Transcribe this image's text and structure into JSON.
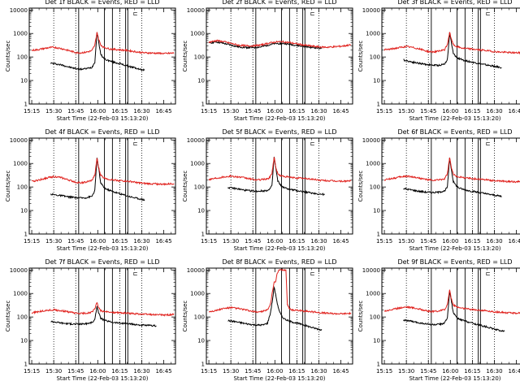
{
  "colors": {
    "events": "#000000",
    "lld": "#e0201c",
    "frame": "#000000",
    "background": "#ffffff"
  },
  "axes": {
    "ylabel": "Counts/sec",
    "xlabel": "Start Time (22-Feb-03 15:13:20)",
    "xtick_labels": [
      "15:15",
      "15:30",
      "15:45",
      "16:00",
      "16:15",
      "16:30",
      "16:45"
    ],
    "xtick_minutes": [
      15,
      30,
      45,
      60,
      75,
      90,
      105
    ],
    "ytick_labels": [
      "1",
      "10",
      "100",
      "1000",
      "10000"
    ],
    "ytick_values": [
      1,
      10,
      100,
      1000,
      10000
    ],
    "xlim_minutes": [
      13.3,
      113
    ],
    "ylim": [
      1,
      12000
    ],
    "yscale": "log",
    "dotted_vlines_minutes": [
      30,
      45,
      75,
      90
    ],
    "solid_vlines_minutes": [
      47,
      64.5,
      70,
      79,
      80.5
    ],
    "marker_glyph": "⊏"
  },
  "chart_data": [
    {
      "type": "line",
      "title": "Det 1f BLACK = Events, RED = LLD",
      "series": [
        {
          "color": "#000000",
          "x": [
            28,
            32,
            36,
            40,
            44,
            48,
            52,
            56,
            58,
            59.5,
            60.5,
            62,
            64,
            66,
            70,
            75,
            80,
            85,
            90,
            92
          ],
          "y": [
            55,
            50,
            45,
            38,
            33,
            30,
            32,
            36,
            60,
            1150,
            500,
            130,
            90,
            75,
            62,
            52,
            42,
            35,
            28,
            28
          ]
        },
        {
          "color": "#e0201c",
          "x": [
            15,
            20,
            25,
            30,
            35,
            40,
            45,
            48,
            52,
            56,
            58,
            59.5,
            60.5,
            62,
            64,
            68,
            72,
            76,
            80,
            84,
            88,
            92,
            96,
            100,
            106,
            112
          ],
          "y": [
            190,
            210,
            240,
            260,
            230,
            190,
            155,
            150,
            160,
            185,
            320,
            1150,
            600,
            330,
            260,
            220,
            210,
            200,
            190,
            175,
            160,
            150,
            148,
            145,
            140,
            148
          ]
        }
      ]
    },
    {
      "type": "line",
      "title": "Det 2f BLACK = Events, RED = LLD",
      "series": [
        {
          "color": "#000000",
          "x": [
            15,
            20,
            25,
            30,
            35,
            40,
            45,
            50,
            55,
            60,
            65,
            70,
            75,
            80,
            85,
            90,
            92
          ],
          "y": [
            390,
            440,
            380,
            320,
            270,
            255,
            250,
            265,
            320,
            370,
            380,
            345,
            310,
            280,
            255,
            240,
            235
          ]
        },
        {
          "color": "#e0201c",
          "x": [
            15,
            20,
            25,
            30,
            35,
            40,
            45,
            50,
            55,
            60,
            65,
            70,
            75,
            80,
            85,
            90,
            95,
            100,
            106,
            112
          ],
          "y": [
            420,
            500,
            450,
            380,
            320,
            300,
            300,
            320,
            380,
            430,
            450,
            410,
            360,
            320,
            290,
            270,
            260,
            270,
            290,
            330
          ]
        }
      ]
    },
    {
      "type": "line",
      "title": "Det 3f BLACK = Events, RED = LLD",
      "series": [
        {
          "color": "#000000",
          "x": [
            28,
            32,
            36,
            40,
            44,
            48,
            52,
            56,
            58,
            59.5,
            60.5,
            62,
            64,
            66,
            70,
            75,
            80,
            85,
            90,
            95
          ],
          "y": [
            75,
            65,
            58,
            52,
            48,
            45,
            44,
            50,
            80,
            1050,
            480,
            140,
            100,
            85,
            70,
            60,
            52,
            45,
            40,
            35
          ]
        },
        {
          "color": "#e0201c",
          "x": [
            15,
            20,
            25,
            30,
            35,
            40,
            45,
            48,
            52,
            56,
            58,
            59.5,
            60.5,
            62,
            64,
            68,
            72,
            76,
            80,
            84,
            88,
            92,
            96,
            100,
            106,
            112
          ],
          "y": [
            200,
            220,
            250,
            280,
            250,
            210,
            170,
            165,
            175,
            200,
            350,
            1150,
            600,
            340,
            280,
            240,
            225,
            215,
            200,
            190,
            175,
            165,
            160,
            155,
            150,
            158
          ]
        }
      ]
    },
    {
      "type": "line",
      "title": "Det 4f BLACK = Events, RED = LLD",
      "series": [
        {
          "color": "#000000",
          "x": [
            28,
            32,
            36,
            40,
            44,
            48,
            52,
            56,
            58,
            59.5,
            60.5,
            62,
            64,
            66,
            70,
            75,
            80,
            85,
            90,
            92
          ],
          "y": [
            50,
            45,
            42,
            38,
            36,
            34,
            35,
            40,
            70,
            1700,
            700,
            150,
            100,
            80,
            65,
            52,
            42,
            35,
            30,
            28
          ]
        },
        {
          "color": "#e0201c",
          "x": [
            15,
            20,
            25,
            30,
            35,
            40,
            45,
            48,
            52,
            56,
            58,
            59.5,
            60.5,
            62,
            64,
            68,
            72,
            76,
            80,
            84,
            88,
            92,
            96,
            100,
            106,
            112
          ],
          "y": [
            170,
            200,
            240,
            280,
            250,
            200,
            160,
            150,
            160,
            190,
            320,
            1700,
            700,
            320,
            250,
            210,
            195,
            185,
            175,
            165,
            150,
            140,
            138,
            135,
            130,
            140
          ]
        }
      ]
    },
    {
      "type": "line",
      "title": "Det 5f BLACK = Events, RED = LLD",
      "series": [
        {
          "color": "#000000",
          "x": [
            28,
            32,
            36,
            40,
            44,
            48,
            52,
            56,
            58,
            59.5,
            60.5,
            62,
            64,
            66,
            70,
            75,
            80,
            85,
            90,
            94
          ],
          "y": [
            95,
            88,
            80,
            72,
            68,
            66,
            68,
            75,
            110,
            1900,
            700,
            180,
            120,
            95,
            80,
            70,
            62,
            56,
            50,
            48
          ]
        },
        {
          "color": "#e0201c",
          "x": [
            15,
            20,
            25,
            30,
            35,
            40,
            45,
            48,
            52,
            56,
            58,
            59.5,
            60.5,
            62,
            64,
            68,
            72,
            76,
            80,
            84,
            88,
            92,
            96,
            100,
            106,
            112
          ],
          "y": [
            210,
            240,
            270,
            290,
            270,
            240,
            210,
            200,
            210,
            230,
            380,
            1900,
            750,
            360,
            300,
            270,
            250,
            240,
            230,
            220,
            205,
            190,
            185,
            180,
            175,
            185
          ]
        }
      ]
    },
    {
      "type": "line",
      "title": "Det 6f BLACK = Events, RED = LLD",
      "series": [
        {
          "color": "#000000",
          "x": [
            28,
            32,
            36,
            40,
            44,
            48,
            52,
            56,
            58,
            59.5,
            60.5,
            62,
            64,
            66,
            70,
            75,
            80,
            85,
            90,
            95
          ],
          "y": [
            85,
            78,
            70,
            64,
            60,
            58,
            60,
            68,
            100,
            1800,
            650,
            170,
            115,
            90,
            75,
            65,
            58,
            50,
            45,
            40
          ]
        },
        {
          "color": "#e0201c",
          "x": [
            15,
            20,
            25,
            30,
            35,
            40,
            45,
            48,
            52,
            56,
            58,
            59.5,
            60.5,
            62,
            64,
            68,
            72,
            76,
            80,
            84,
            88,
            92,
            96,
            100,
            106,
            112
          ],
          "y": [
            200,
            230,
            260,
            290,
            265,
            230,
            200,
            190,
            200,
            220,
            370,
            1800,
            720,
            350,
            290,
            255,
            240,
            225,
            215,
            205,
            190,
            180,
            175,
            170,
            165,
            175
          ]
        }
      ]
    },
    {
      "type": "line",
      "title": "Det 7f BLACK = Events, RED = LLD",
      "series": [
        {
          "color": "#000000",
          "x": [
            28,
            32,
            36,
            40,
            44,
            48,
            52,
            56,
            58,
            59.5,
            60.5,
            62,
            64,
            66,
            70,
            75,
            80,
            85,
            90,
            95,
            100
          ],
          "y": [
            65,
            60,
            55,
            52,
            50,
            50,
            52,
            58,
            75,
            300,
            160,
            90,
            75,
            68,
            60,
            55,
            52,
            48,
            45,
            43,
            42
          ]
        },
        {
          "color": "#e0201c",
          "x": [
            15,
            20,
            25,
            30,
            35,
            40,
            45,
            48,
            52,
            56,
            58,
            59.5,
            60.5,
            62,
            64,
            68,
            72,
            76,
            80,
            84,
            88,
            92,
            96,
            100,
            106,
            112
          ],
          "y": [
            150,
            170,
            190,
            200,
            185,
            165,
            145,
            140,
            145,
            160,
            220,
            420,
            260,
            190,
            170,
            160,
            155,
            150,
            145,
            140,
            135,
            130,
            128,
            125,
            122,
            128
          ]
        }
      ]
    },
    {
      "type": "line",
      "title": "Det 8f BLACK = Events, RED = LLD",
      "series": [
        {
          "color": "#000000",
          "x": [
            28,
            32,
            36,
            40,
            44,
            48,
            52,
            55,
            57,
            58.5,
            59.5,
            60.5,
            62,
            63.5,
            65,
            67,
            70,
            75,
            80,
            85,
            90,
            92
          ],
          "y": [
            70,
            65,
            58,
            52,
            48,
            45,
            46,
            55,
            150,
            600,
            1900,
            900,
            300,
            150,
            100,
            80,
            65,
            55,
            45,
            36,
            30,
            28
          ]
        },
        {
          "color": "#e0201c",
          "x": [
            15,
            20,
            25,
            30,
            35,
            40,
            45,
            48,
            52,
            55,
            57,
            58.5,
            59.5,
            60.5,
            61.5,
            62.5,
            63.5,
            64.5,
            65.5,
            66.5,
            67.5,
            68.5,
            70,
            72,
            76,
            80,
            84,
            88,
            92,
            96,
            100,
            106,
            112
          ],
          "y": [
            170,
            190,
            230,
            250,
            230,
            200,
            170,
            165,
            175,
            200,
            350,
            1400,
            3200,
            3000,
            6500,
            9500,
            9800,
            10000,
            10000,
            10000,
            10000,
            350,
            220,
            200,
            190,
            180,
            170,
            160,
            150,
            145,
            140,
            138,
            145
          ]
        }
      ]
    },
    {
      "type": "line",
      "title": "Det 9f BLACK = Events, RED = LLD",
      "series": [
        {
          "color": "#000000",
          "x": [
            28,
            32,
            36,
            40,
            44,
            48,
            52,
            56,
            58,
            59.5,
            60.5,
            62,
            64,
            66,
            70,
            75,
            80,
            85,
            90,
            95,
            97
          ],
          "y": [
            75,
            68,
            60,
            55,
            50,
            47,
            48,
            55,
            90,
            1350,
            550,
            150,
            100,
            80,
            68,
            55,
            45,
            38,
            30,
            26,
            25
          ]
        },
        {
          "color": "#e0201c",
          "x": [
            15,
            20,
            25,
            30,
            35,
            40,
            45,
            48,
            52,
            56,
            58,
            59.5,
            60.5,
            62,
            64,
            68,
            72,
            76,
            80,
            84,
            88,
            92,
            96,
            100,
            106,
            112
          ],
          "y": [
            180,
            205,
            240,
            270,
            245,
            210,
            175,
            170,
            180,
            205,
            340,
            1500,
            650,
            330,
            270,
            235,
            220,
            205,
            195,
            185,
            170,
            160,
            155,
            150,
            145,
            150
          ]
        }
      ]
    }
  ]
}
